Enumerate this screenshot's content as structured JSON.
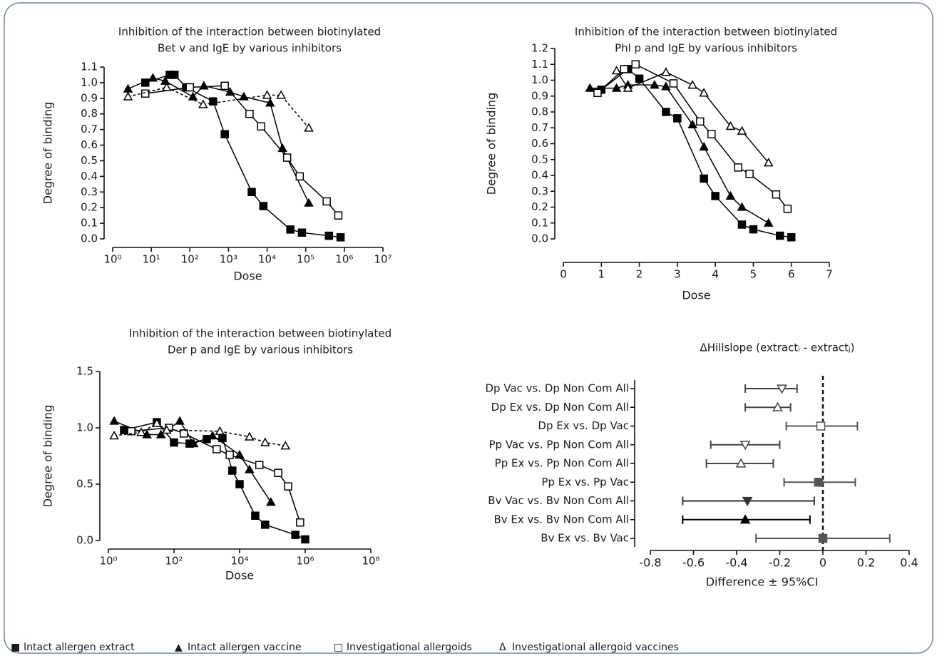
{
  "chart_data": [
    {
      "type": "dose-response",
      "title": [
        "Inhibition of the interaction between biotinylated",
        "Bet v and IgE by various inhibitors"
      ],
      "xlabel": "Dose",
      "ylabel": "Degree of binding",
      "xscale": "log",
      "xlim": [
        1,
        10000000
      ],
      "xticks": [
        {
          "value": 1,
          "label": "10⁰"
        },
        {
          "value": 10,
          "label": "10¹"
        },
        {
          "value": 100,
          "label": "10²"
        },
        {
          "value": 1000,
          "label": "10³"
        },
        {
          "value": 10000,
          "label": "10⁴"
        },
        {
          "value": 100000,
          "label": "10⁵"
        },
        {
          "value": 1000000,
          "label": "10⁶"
        },
        {
          "value": 10000000,
          "label": "10⁷"
        }
      ],
      "ylim": [
        0,
        1.1
      ],
      "yticks": [
        {
          "value": 0,
          "label": "0.0"
        },
        0.1,
        0.2,
        0.3,
        0.4,
        0.5,
        0.6,
        0.7,
        0.8,
        0.9,
        {
          "value": 1,
          "label": "1.0"
        },
        1.1
      ],
      "series": [
        {
          "marker": "filled-square",
          "color": "#000000",
          "line_style": "solid",
          "x": [
            7,
            30,
            40,
            80,
            400,
            800,
            4000,
            8000,
            40000,
            80000,
            400000,
            800000
          ],
          "values": [
            1.0,
            1.05,
            1.05,
            0.97,
            0.88,
            0.67,
            0.3,
            0.21,
            0.06,
            0.04,
            0.02,
            0.01
          ]
        },
        {
          "marker": "filled-triangle",
          "color": "#000000",
          "line_style": "solid",
          "x": [
            2.5,
            11,
            23,
            120,
            230,
            1100,
            2500,
            12000,
            25000,
            120000
          ],
          "values": [
            0.96,
            1.03,
            1.01,
            0.91,
            0.98,
            0.94,
            0.91,
            0.87,
            0.58,
            0.23
          ]
        },
        {
          "marker": "open-square",
          "color": "#000000",
          "line_style": "solid",
          "x": [
            7,
            100,
            800,
            3500,
            7000,
            33000,
            70000,
            350000,
            700000
          ],
          "values": [
            0.93,
            0.97,
            0.98,
            0.8,
            0.72,
            0.52,
            0.4,
            0.24,
            0.15
          ]
        },
        {
          "marker": "open-triangle",
          "color": "#000000",
          "line_style": "dashed",
          "x": [
            2.5,
            25,
            220,
            10000,
            23000,
            120000
          ],
          "values": [
            0.91,
            0.97,
            0.86,
            0.92,
            0.92,
            0.71
          ]
        }
      ]
    },
    {
      "type": "dose-response",
      "title": [
        "Inhibition of the interaction between biotinylated",
        "Phl p and IgE by various inhibitors"
      ],
      "xlabel": "Dose",
      "ylabel": "Degree of binding",
      "xscale": "linear",
      "xlim": [
        0,
        7
      ],
      "xticks": [
        0,
        1,
        2,
        3,
        4,
        5,
        6,
        7
      ],
      "ylim": [
        0,
        1.2
      ],
      "yticks": [
        {
          "value": 0,
          "label": "0.0"
        },
        0.1,
        0.2,
        0.3,
        0.4,
        0.5,
        0.6,
        0.7,
        0.8,
        0.9,
        {
          "value": 1,
          "label": "1.0"
        },
        1.1,
        1.2
      ],
      "series": [
        {
          "marker": "filled-square",
          "color": "#000000",
          "line_style": "solid",
          "x": [
            1.0,
            1.7,
            2.0,
            2.7,
            3.0,
            3.7,
            4.0,
            4.7,
            5.0,
            5.7,
            6.0
          ],
          "values": [
            0.94,
            1.07,
            1.01,
            0.8,
            0.76,
            0.38,
            0.27,
            0.09,
            0.06,
            0.02,
            0.01
          ]
        },
        {
          "marker": "filled-triangle",
          "color": "#000000",
          "line_style": "solid",
          "x": [
            0.7,
            1.4,
            1.7,
            2.4,
            2.7,
            3.4,
            3.7,
            4.4,
            4.7,
            5.4
          ],
          "values": [
            0.95,
            0.95,
            0.97,
            0.97,
            0.96,
            0.72,
            0.58,
            0.27,
            0.2,
            0.1
          ]
        },
        {
          "marker": "open-square",
          "color": "#000000",
          "line_style": "solid",
          "x": [
            0.9,
            1.6,
            1.9,
            2.9,
            3.6,
            3.9,
            4.6,
            4.9,
            5.6,
            5.9
          ],
          "values": [
            0.92,
            1.07,
            1.1,
            0.98,
            0.74,
            0.66,
            0.45,
            0.41,
            0.28,
            0.19
          ]
        },
        {
          "marker": "open-triangle",
          "color": "#000000",
          "line_style": "solid",
          "x": [
            1.4,
            1.7,
            2.7,
            3.4,
            3.7,
            4.4,
            4.7,
            5.4
          ],
          "values": [
            1.06,
            0.95,
            1.05,
            0.97,
            0.92,
            0.71,
            0.68,
            0.48
          ]
        }
      ]
    },
    {
      "type": "dose-response",
      "title": [
        "Inhibition of the interaction between biotinylated",
        "Der p and IgE by various inhibitors"
      ],
      "xlabel": "Dose",
      "ylabel": "Degree of binding",
      "xscale": "log",
      "xlim": [
        1,
        100000000
      ],
      "xticks": [
        {
          "value": 1,
          "label": "10⁰"
        },
        {
          "value": 100,
          "label": "10²"
        },
        {
          "value": 10000,
          "label": "10⁴"
        },
        {
          "value": 1000000,
          "label": "10⁶"
        },
        {
          "value": 100000000,
          "label": "10⁸"
        }
      ],
      "ylim": [
        0,
        1.5
      ],
      "yticks": [
        {
          "value": 0,
          "label": "0.0"
        },
        0.5,
        {
          "value": 1,
          "label": "1.0"
        },
        1.5
      ],
      "series": [
        {
          "marker": "filled-square",
          "color": "#000000",
          "line_style": "solid",
          "x": [
            3,
            30,
            100,
            300,
            1000,
            3000,
            6000,
            10000,
            30000,
            60000,
            500000,
            1000000
          ],
          "values": [
            0.98,
            1.05,
            0.87,
            0.86,
            0.9,
            0.91,
            0.62,
            0.5,
            0.22,
            0.14,
            0.05,
            0.01
          ]
        },
        {
          "marker": "filled-triangle",
          "color": "#000000",
          "line_style": "solid",
          "x": [
            1.5,
            15,
            40,
            150,
            400,
            1500,
            10000,
            20000,
            90000
          ],
          "values": [
            1.06,
            0.94,
            0.94,
            1.06,
            0.86,
            0.93,
            0.76,
            0.63,
            0.34
          ]
        },
        {
          "marker": "open-square",
          "color": "#000000",
          "line_style": "solid",
          "x": [
            5,
            70,
            200,
            2000,
            5000,
            40000,
            150000,
            300000,
            700000
          ],
          "values": [
            0.97,
            1.0,
            0.95,
            0.81,
            0.76,
            0.67,
            0.6,
            0.48,
            0.16
          ]
        },
        {
          "marker": "open-triangle",
          "color": "#000000",
          "line_style": "dashed",
          "x": [
            1.5,
            10,
            30,
            60,
            2500,
            20000,
            60000,
            250000
          ],
          "values": [
            0.93,
            0.96,
            1.04,
            0.98,
            0.97,
            0.92,
            0.87,
            0.84
          ]
        }
      ]
    },
    {
      "type": "forest",
      "title": "ΔHillslope (extractᵢ - extractⱼ)",
      "xlabel": "Difference ± 95%CI",
      "categories": [
        "Dp Vac vs. Dp Non Com All",
        "Dp Ex vs. Dp Non Com All",
        "Dp Ex vs. Dp Vac",
        "Pp Vac vs. Pp Non Com All",
        "Pp Ex vs. Pp Non Com All",
        "Pp Ex vs. Pp Vac",
        "Bv Vac vs. Bv Non Com All",
        "Bv Ex vs. Bv Non Com All",
        "Bv Ex vs. Bv Vac"
      ],
      "values": [
        -0.19,
        -0.21,
        -0.01,
        -0.36,
        -0.38,
        -0.02,
        -0.35,
        -0.36,
        0.0
      ],
      "lower": [
        -0.36,
        -0.36,
        -0.17,
        -0.52,
        -0.54,
        -0.18,
        -0.65,
        -0.65,
        -0.31
      ],
      "upper": [
        -0.12,
        -0.15,
        0.16,
        -0.2,
        -0.23,
        0.15,
        -0.04,
        -0.06,
        0.31
      ],
      "markers": [
        "open-down-triangle",
        "open-triangle",
        "open-square",
        "open-down-triangle",
        "open-triangle",
        "filled-square",
        "filled-down-triangle",
        "filled-triangle",
        "filled-square"
      ],
      "colors": [
        "#444444",
        "#444444",
        "#555555",
        "#444444",
        "#444444",
        "#555555",
        "#333333",
        "#000000",
        "#555555"
      ],
      "xlim": [
        -0.8,
        0.4
      ],
      "xticks": [
        -0.8,
        -0.6,
        -0.4,
        -0.2,
        0,
        0.2,
        0.4
      ],
      "reference_line": 0
    }
  ],
  "legend": [
    {
      "marker": "■",
      "label": "Intact allergen extract"
    },
    {
      "marker": "▲",
      "label": "Intact allergen vaccine"
    },
    {
      "marker": "□",
      "label": "Investigational allergoids"
    },
    {
      "marker": "Δ",
      "label": "Investigational allergoid vaccines"
    }
  ]
}
